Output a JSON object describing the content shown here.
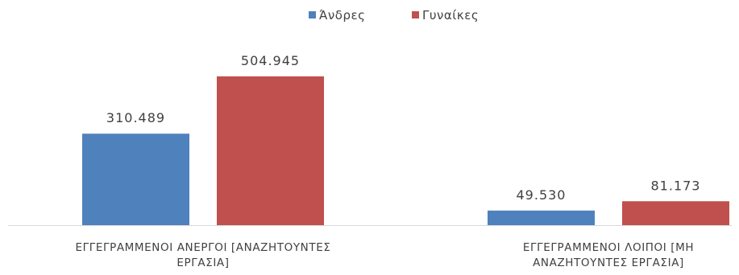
{
  "chart_data": {
    "type": "bar",
    "categories": [
      [
        "ΕΓΓΕΓΡΑΜΜΕΝΟΙ ΑΝΕΡΓΟΙ [ΑΝΑΖΗΤΟΥΝΤΕΣ",
        "ΕΡΓΑΣΙΑ]"
      ],
      [
        "ΕΓΓΕΓΡΑΜΜΕΝΟΙ ΛΟΙΠΟΙ [ΜΗ",
        "ΑΝΑΖΗΤΟΥΝΤΕΣ ΕΡΓΑΣΙΑ]"
      ]
    ],
    "series": [
      {
        "name": "Άνδρες",
        "color": "#4f81bd",
        "values": [
          310489,
          49530
        ],
        "labels": [
          "310.489",
          "49.530"
        ]
      },
      {
        "name": "Γυναίκες",
        "color": "#c0504d",
        "values": [
          504945,
          81173
        ],
        "labels": [
          "504.945",
          "81.173"
        ]
      }
    ],
    "title": "",
    "xlabel": "",
    "ylabel": "",
    "ylim": [
      0,
      600000
    ],
    "grid": false,
    "legend_position": "top-center",
    "data_labels": true
  }
}
